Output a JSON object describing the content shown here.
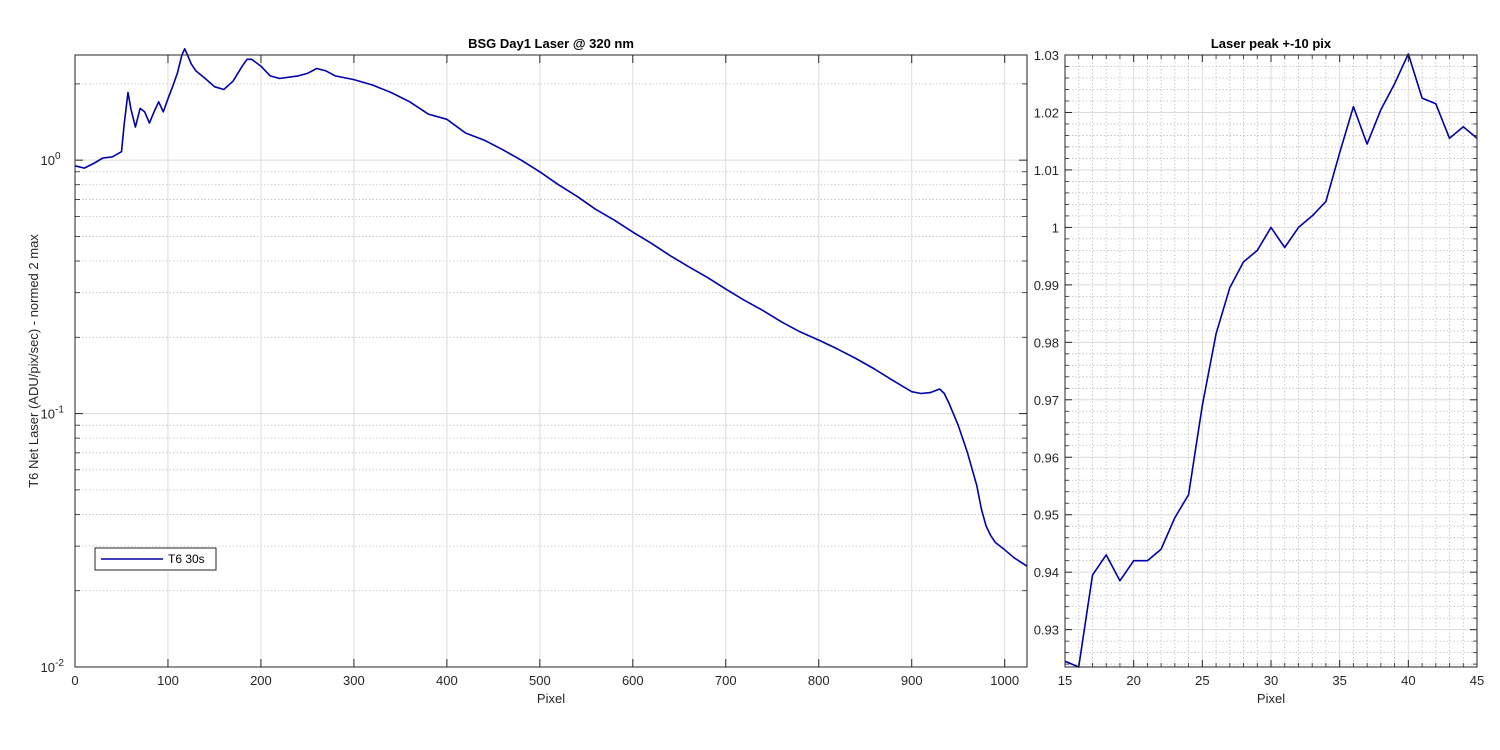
{
  "colors": {
    "series": "#0000AA",
    "axis": "#262626",
    "grid": "#DCDCDC",
    "minor_grid": "#BDBDBD"
  },
  "chart_data": [
    {
      "type": "line",
      "title": "BSG  Day1 Laser @ 320 nm",
      "xlabel": "Pixel",
      "ylabel": "T6 Net Laser (ADU/pix/sec) - normed 2 max",
      "xlim": [
        0,
        1024
      ],
      "ylim": [
        0.01,
        2.6
      ],
      "yscale": "log",
      "grid": true,
      "minor_grid": true,
      "legend_position": "lower-left",
      "x_ticks": [
        "0",
        "100",
        "200",
        "300",
        "400",
        "500",
        "600",
        "700",
        "800",
        "900",
        "1000"
      ],
      "x_tick_values": [
        0,
        100,
        200,
        300,
        400,
        500,
        600,
        700,
        800,
        900,
        1000
      ],
      "y_ticks": [
        {
          "value": 0.01,
          "base": "10",
          "exp": "-2"
        },
        {
          "value": 0.1,
          "base": "10",
          "exp": "-1"
        },
        {
          "value": 1,
          "base": "10",
          "exp": "0"
        }
      ],
      "series": [
        {
          "name": "T6 30s",
          "x": [
            0,
            10,
            20,
            30,
            40,
            50,
            53,
            57,
            60,
            65,
            70,
            75,
            80,
            85,
            90,
            95,
            100,
            105,
            110,
            115,
            118,
            120,
            125,
            130,
            140,
            150,
            160,
            170,
            180,
            185,
            190,
            200,
            210,
            220,
            240,
            250,
            260,
            270,
            280,
            300,
            320,
            340,
            360,
            380,
            400,
            420,
            440,
            460,
            480,
            500,
            520,
            540,
            560,
            580,
            600,
            620,
            640,
            660,
            680,
            700,
            720,
            740,
            760,
            780,
            800,
            820,
            840,
            860,
            880,
            900,
            910,
            920,
            930,
            935,
            940,
            950,
            960,
            970,
            975,
            980,
            985,
            990,
            1000,
            1010,
            1024
          ],
          "y": [
            0.95,
            0.93,
            0.97,
            1.02,
            1.03,
            1.08,
            1.4,
            1.85,
            1.6,
            1.35,
            1.6,
            1.55,
            1.4,
            1.55,
            1.7,
            1.55,
            1.75,
            1.95,
            2.2,
            2.6,
            2.75,
            2.65,
            2.4,
            2.25,
            2.1,
            1.95,
            1.9,
            2.05,
            2.35,
            2.5,
            2.5,
            2.35,
            2.15,
            2.1,
            2.15,
            2.2,
            2.3,
            2.25,
            2.15,
            2.08,
            1.98,
            1.85,
            1.7,
            1.52,
            1.45,
            1.28,
            1.2,
            1.1,
            1.0,
            0.9,
            0.8,
            0.72,
            0.64,
            0.58,
            0.52,
            0.47,
            0.42,
            0.38,
            0.345,
            0.31,
            0.28,
            0.255,
            0.23,
            0.21,
            0.195,
            0.18,
            0.165,
            0.15,
            0.135,
            0.122,
            0.12,
            0.121,
            0.125,
            0.12,
            0.11,
            0.09,
            0.07,
            0.052,
            0.042,
            0.036,
            0.033,
            0.031,
            0.029,
            0.027,
            0.025
          ]
        }
      ]
    },
    {
      "type": "line",
      "title": "Laser peak +-10 pix",
      "xlabel": "Pixel",
      "ylabel": "",
      "xlim": [
        15,
        45
      ],
      "ylim": [
        0.9235,
        1.03
      ],
      "yscale": "linear",
      "grid": true,
      "minor_grid": true,
      "x_ticks": [
        "15",
        "20",
        "25",
        "30",
        "35",
        "40",
        "45"
      ],
      "x_tick_values": [
        15,
        20,
        25,
        30,
        35,
        40,
        45
      ],
      "y_ticks": [
        "0.93",
        "0.94",
        "0.95",
        "0.96",
        "0.97",
        "0.98",
        "0.99",
        "1",
        "1.01",
        "1.02",
        "1.03"
      ],
      "y_tick_values": [
        0.93,
        0.94,
        0.95,
        0.96,
        0.97,
        0.98,
        0.99,
        1.0,
        1.01,
        1.02,
        1.03
      ],
      "series": [
        {
          "name": "",
          "x": [
            15,
            16,
            17,
            18,
            19,
            20,
            21,
            22,
            23,
            24,
            25,
            26,
            27,
            28,
            29,
            30,
            31,
            32,
            33,
            34,
            35,
            36,
            37,
            38,
            39,
            40,
            41,
            42,
            43,
            44,
            45
          ],
          "y": [
            0.9245,
            0.9235,
            0.9395,
            0.943,
            0.9385,
            0.942,
            0.942,
            0.944,
            0.9495,
            0.9535,
            0.969,
            0.9815,
            0.9895,
            0.994,
            0.996,
            1.0,
            0.9965,
            1.0,
            1.002,
            1.0045,
            1.013,
            1.021,
            1.0145,
            1.0205,
            1.025,
            1.0302,
            1.0225,
            1.0215,
            1.0155,
            1.0175,
            1.0155
          ]
        }
      ]
    }
  ]
}
